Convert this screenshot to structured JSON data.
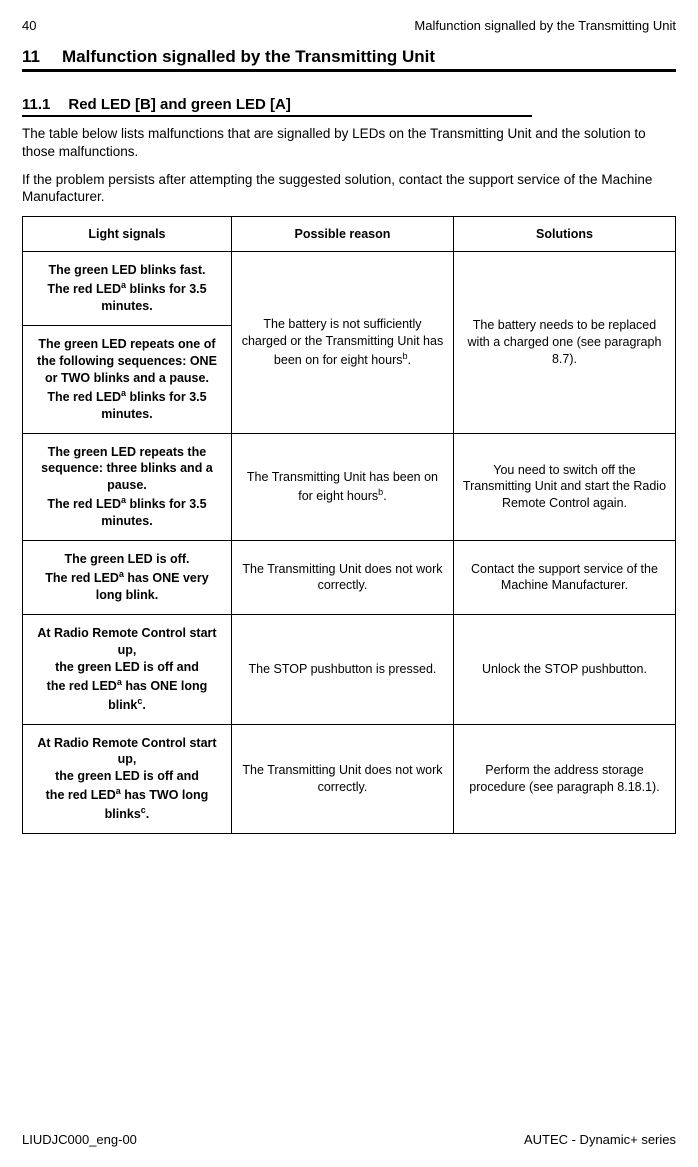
{
  "page_number": "40",
  "header_right": "Malfunction signalled by the Transmitting Unit",
  "section_number": "11",
  "section_title": "Malfunction signalled by the Transmitting Unit",
  "sub_number": "11.1",
  "sub_title": "Red LED [B] and green LED [A]",
  "intro_a": "The table below lists malfunctions that are signalled by LEDs on the Transmitting Unit and the solution to those malfunctions.",
  "intro_b": "If the problem persists after attempting the suggested solution, contact the support service of the Machine Manufacturer.",
  "th1": "Light signals",
  "th2": "Possible reason",
  "th3": "Solutions",
  "r1_signal_a": "The green LED blinks fast.",
  "r1_signal_b_pre": "The red LED",
  "r1_signal_b_post": " blinks for 3.5 minutes.",
  "r2_signal_a": "The green LED repeats one of the following sequences: ONE or TWO blinks and a pause.",
  "r2_signal_b_pre": "The red LED",
  "r2_signal_b_post": " blinks for 3.5 minutes.",
  "r12_reason_pre": "The battery is not sufficiently charged or the Transmitting Unit has been on for eight hours",
  "r12_reason_post": ".",
  "r12_solution": "The battery needs to be replaced with a charged one (see paragraph 8.7).",
  "r3_signal_a": "The green LED repeats the sequence: three blinks and a pause.",
  "r3_signal_b_pre": "The red LED",
  "r3_signal_b_post": " blinks for 3.5 minutes.",
  "r3_reason_pre": "The Transmitting Unit has been on for eight hours",
  "r3_reason_post": ".",
  "r3_solution": "You need to switch off the Transmitting Unit and start the Radio Remote Control again.",
  "r4_signal_a": "The green LED is off.",
  "r4_signal_b_pre": "The red LED",
  "r4_signal_b_post": " has ONE very long blink.",
  "r4_reason": "The Transmitting Unit does not work correctly.",
  "r4_solution": "Contact the support service of the Machine Manufacturer.",
  "r5_signal_a": "At Radio Remote Control start up,",
  "r5_signal_b": "the green LED is off and",
  "r5_signal_c_pre": "the red LED",
  "r5_signal_c_mid": " has ONE long blink",
  "r5_signal_c_post": ".",
  "r5_reason": "The STOP pushbutton is pressed.",
  "r5_solution": "Unlock the STOP pushbutton.",
  "r6_signal_a": "At Radio Remote Control start up,",
  "r6_signal_b": "the green LED is off and",
  "r6_signal_c_pre": "the red LED",
  "r6_signal_c_mid": " has TWO long blinks",
  "r6_signal_c_post": ".",
  "r6_reason": "The Transmitting Unit does not work correctly.",
  "r6_solution": "Perform the address storage procedure (see paragraph 8.18.1).",
  "sup_a": "a",
  "sup_b": "b",
  "sup_c": "c",
  "footer_left": "LIUDJC000_eng-00",
  "footer_right": "AUTEC - Dynamic+ series"
}
